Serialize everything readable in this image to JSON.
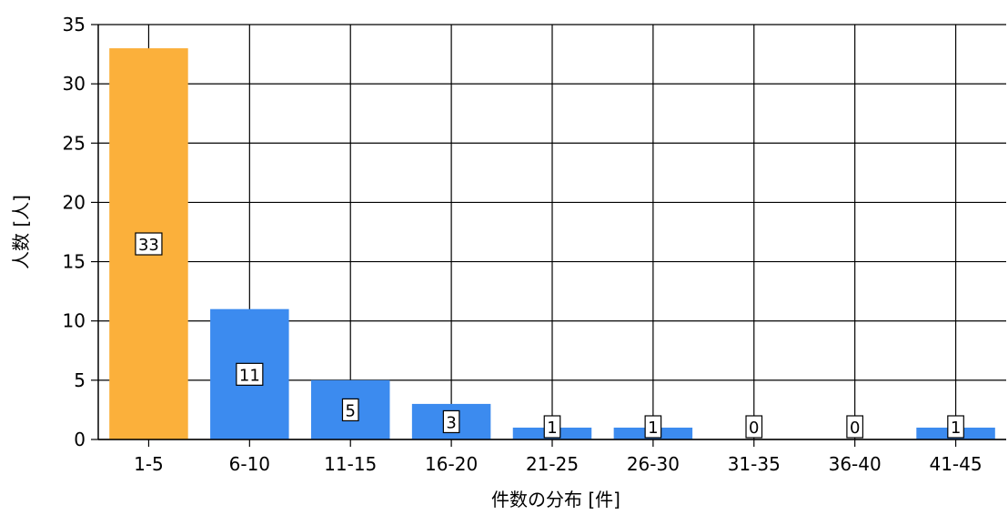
{
  "chart_data": {
    "type": "bar",
    "title": "",
    "xlabel": "件数の分布 [件]",
    "ylabel": "人数 [人]",
    "categories": [
      "1-5",
      "6-10",
      "11-15",
      "16-20",
      "21-25",
      "26-30",
      "31-35",
      "36-40",
      "41-45"
    ],
    "values": [
      33,
      11,
      5,
      3,
      1,
      1,
      0,
      0,
      1
    ],
    "data_labels": [
      "33",
      "11",
      "5",
      "3",
      "1",
      "1",
      "0",
      "0",
      "1"
    ],
    "ylim": [
      0,
      35
    ],
    "yticks": [
      "0",
      "5",
      "10",
      "15",
      "20",
      "25",
      "30",
      "35"
    ],
    "grid": true,
    "legend": "none",
    "colors": {
      "highlight": "#FBB03B",
      "default": "#3C8BEF",
      "grid": "#000000"
    },
    "highlighted_category": "1-5"
  }
}
